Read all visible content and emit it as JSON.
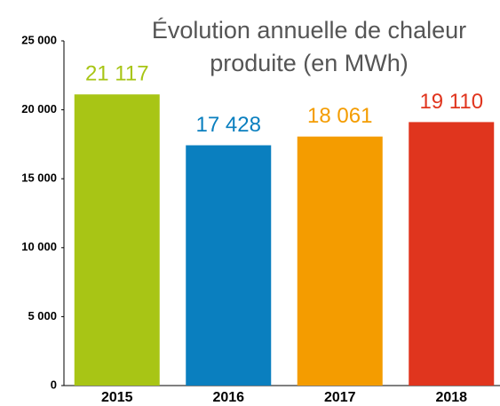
{
  "chart_data": {
    "type": "bar",
    "title": "Évolution annuelle de chaleur produite (en MWh)",
    "categories": [
      "2015",
      "2016",
      "2017",
      "2018"
    ],
    "values": [
      21117,
      17428,
      18061,
      19110
    ],
    "value_labels": [
      "21 117",
      "17 428",
      "18 061",
      "19 110"
    ],
    "colors": [
      "#a8c515",
      "#0a7fbf",
      "#f49c00",
      "#e0351e"
    ],
    "ylim": [
      0,
      25000
    ],
    "yticks": [
      0,
      {
        "value": 5000,
        "label": "5 000"
      },
      {
        "value": 10000,
        "label": "10 000"
      },
      {
        "value": 15000,
        "label": "15 000"
      },
      {
        "value": 20000,
        "label": "20 000"
      },
      {
        "value": 25000,
        "label": "25 000"
      }
    ],
    "grid": false
  }
}
